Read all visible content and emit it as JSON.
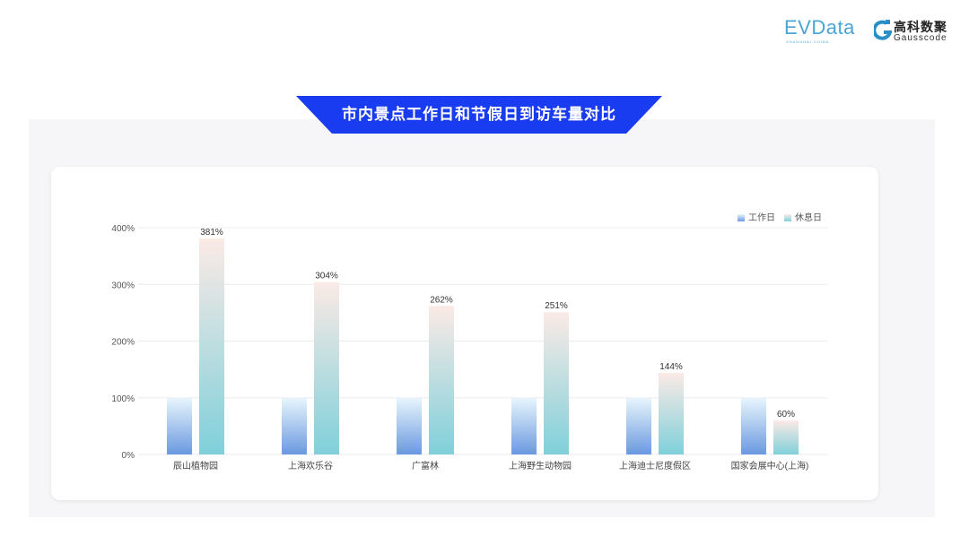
{
  "title": "市内景点工作日和节假日到访车量对比",
  "logos": {
    "evdata": "EVData",
    "evdata_sub": "SHANGHAI CHINA",
    "gauss_cn": "高科数聚",
    "gauss_en": "Gausscode"
  },
  "colors": {
    "banner": "#1a3cf0",
    "workday_top": "#e8f6fc",
    "workday_bottom": "#6a98e0",
    "holiday_top": "#fbeae6",
    "holiday_bottom": "#7fd0da"
  },
  "chart_data": {
    "type": "bar",
    "categories": [
      "辰山植物园",
      "上海欢乐谷",
      "广富林",
      "上海野生动物园",
      "上海迪士尼度假区",
      "国家会展中心(上海)"
    ],
    "series": [
      {
        "name": "工作日",
        "values": [
          100,
          100,
          100,
          100,
          100,
          100
        ]
      },
      {
        "name": "休息日",
        "values": [
          381,
          304,
          262,
          251,
          144,
          60
        ]
      }
    ],
    "data_labels": [
      "381%",
      "304%",
      "262%",
      "251%",
      "144%",
      "60%"
    ],
    "yticks": [
      "0%",
      "100%",
      "200%",
      "300%",
      "400%"
    ],
    "ylim": [
      0,
      400
    ],
    "grid": true,
    "legend": "top-right"
  }
}
